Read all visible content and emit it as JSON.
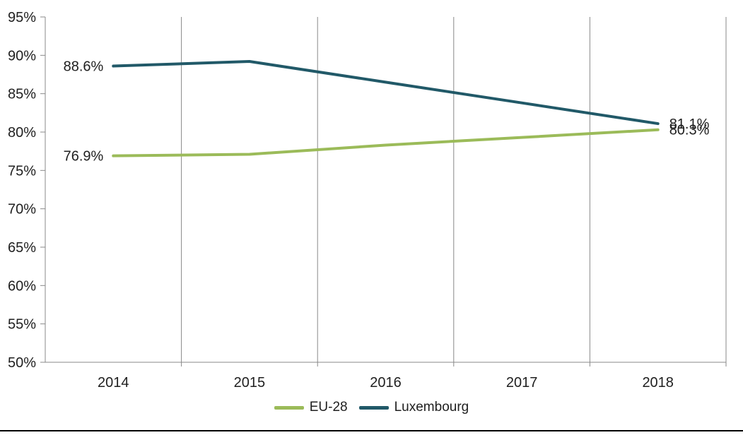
{
  "page": {
    "background_color": "#ffffff",
    "bottom_border_color": "#000000"
  },
  "chart_data": {
    "type": "line",
    "title": "",
    "xlabel": "",
    "ylabel": "",
    "categories": [
      "2014",
      "2015",
      "2016",
      "2017",
      "2018"
    ],
    "series": [
      {
        "name": "EU-28",
        "color": "#9BBB59",
        "values": [
          76.9,
          77.1,
          78.3,
          79.3,
          80.3
        ]
      },
      {
        "name": "Luxembourg",
        "color": "#215968",
        "values": [
          88.6,
          89.2,
          86.5,
          83.8,
          81.1
        ]
      }
    ],
    "data_labels": [
      {
        "series_index": 1,
        "point_index": 0,
        "text": "88.6%",
        "side": "left"
      },
      {
        "series_index": 0,
        "point_index": 0,
        "text": "76.9%",
        "side": "left"
      },
      {
        "series_index": 1,
        "point_index": 4,
        "text": "81.1%",
        "side": "right"
      },
      {
        "series_index": 0,
        "point_index": 4,
        "text": "80.3%",
        "side": "right"
      }
    ],
    "ylim": [
      50,
      95
    ],
    "ytick_step": 5,
    "ytick_labels": [
      "50%",
      "55%",
      "60%",
      "65%",
      "70%",
      "75%",
      "80%",
      "85%",
      "90%",
      "95%"
    ],
    "grid": "vertical-only",
    "legend_position": "bottom-center",
    "axis_color": "#898989",
    "gridline_color": "#898989",
    "text_color": "#1f1f1f"
  }
}
